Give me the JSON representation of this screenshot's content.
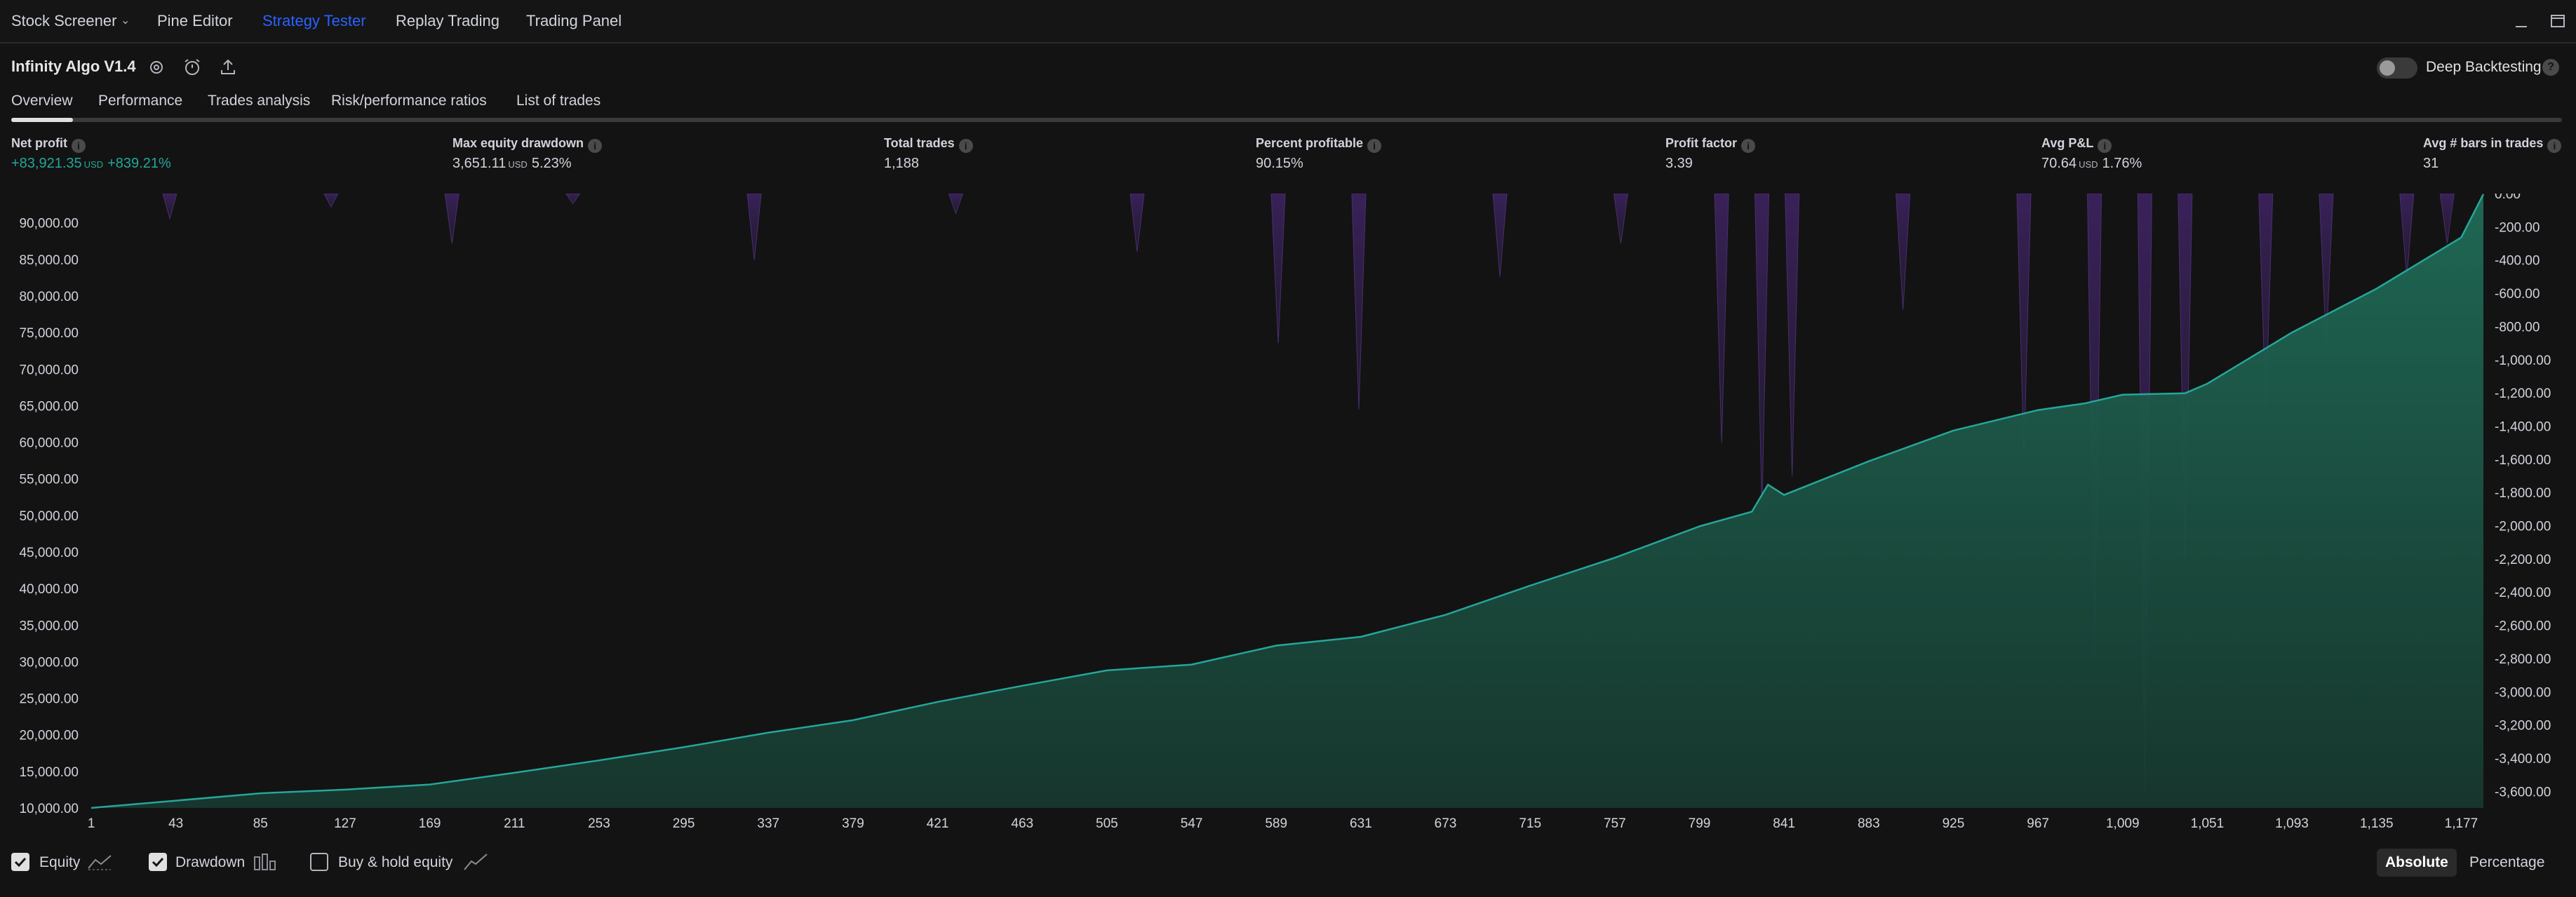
{
  "topnav": {
    "tabs": [
      {
        "label": "Stock Screener",
        "active": false
      },
      {
        "label": "Pine Editor",
        "active": false
      },
      {
        "label": "Strategy Tester",
        "active": true
      },
      {
        "label": "Replay Trading",
        "active": false
      },
      {
        "label": "Trading Panel",
        "active": false
      }
    ]
  },
  "strategy": {
    "name": "Infinity Algo V1.4",
    "deep_backtesting_label": "Deep Backtesting",
    "deep_backtesting_on": false
  },
  "subtabs": [
    "Overview",
    "Performance",
    "Trades analysis",
    "Risk/performance ratios",
    "List of trades"
  ],
  "metrics": {
    "net_profit": {
      "label": "Net profit",
      "value": "+83,921.35",
      "unit": "USD",
      "pct": "+839.21%"
    },
    "max_drawdown": {
      "label": "Max equity drawdown",
      "value": "3,651.11",
      "unit": "USD",
      "pct": "5.23%"
    },
    "total_trades": {
      "label": "Total trades",
      "value": "1,188"
    },
    "percent_profitable": {
      "label": "Percent profitable",
      "value": "90.15%"
    },
    "profit_factor": {
      "label": "Profit factor",
      "value": "3.39"
    },
    "avg_pnl": {
      "label": "Avg P&L",
      "value": "70.64",
      "unit": "USD",
      "pct": "1.76%"
    },
    "avg_bars": {
      "label": "Avg # bars in trades",
      "value": "31"
    }
  },
  "chart_data": {
    "type": "area",
    "x_ticks": [
      "1",
      "43",
      "85",
      "127",
      "169",
      "211",
      "253",
      "295",
      "337",
      "379",
      "421",
      "463",
      "505",
      "547",
      "589",
      "631",
      "673",
      "715",
      "757",
      "799",
      "841",
      "883",
      "925",
      "967",
      "1,009",
      "1,051",
      "1,093",
      "1,135",
      "1,177"
    ],
    "left_axis_ticks": [
      "90,000.00",
      "85,000.00",
      "80,000.00",
      "75,000.00",
      "70,000.00",
      "65,000.00",
      "60,000.00",
      "55,000.00",
      "50,000.00",
      "45,000.00",
      "40,000.00",
      "35,000.00",
      "30,000.00",
      "25,000.00",
      "20,000.00",
      "15,000.00",
      "10,000.00"
    ],
    "right_axis_ticks": [
      "0.00",
      "-200.00",
      "-400.00",
      "-600.00",
      "-800.00",
      "-1,000.00",
      "-1,200.00",
      "-1,400.00",
      "-1,600.00",
      "-1,800.00",
      "-2,000.00",
      "-2,200.00",
      "-2,400.00",
      "-2,600.00",
      "-2,800.00",
      "-3,000.00",
      "-3,200.00",
      "-3,400.00",
      "-3,600.00"
    ],
    "ylim_equity": [
      10000,
      94000
    ],
    "ylim_drawdown": [
      -3700,
      0
    ],
    "series": [
      {
        "name": "Equity",
        "color": "#26a69a",
        "points": [
          [
            1,
            10000
          ],
          [
            43,
            11000
          ],
          [
            85,
            12000
          ],
          [
            127,
            12500
          ],
          [
            169,
            13200
          ],
          [
            211,
            14800
          ],
          [
            253,
            16500
          ],
          [
            295,
            18300
          ],
          [
            337,
            20300
          ],
          [
            379,
            22000
          ],
          [
            421,
            24500
          ],
          [
            463,
            26700
          ],
          [
            505,
            28800
          ],
          [
            547,
            29600
          ],
          [
            589,
            32200
          ],
          [
            631,
            33400
          ],
          [
            673,
            36400
          ],
          [
            715,
            40400
          ],
          [
            757,
            44200
          ],
          [
            799,
            48500
          ],
          [
            825,
            50500
          ],
          [
            833,
            54200
          ],
          [
            841,
            52800
          ],
          [
            883,
            57400
          ],
          [
            925,
            61600
          ],
          [
            967,
            64400
          ],
          [
            990,
            65300
          ],
          [
            1009,
            66500
          ],
          [
            1040,
            66700
          ],
          [
            1051,
            68000
          ],
          [
            1093,
            75000
          ],
          [
            1135,
            81000
          ],
          [
            1177,
            88000
          ],
          [
            1188,
            93920
          ]
        ]
      },
      {
        "name": "Drawdown",
        "color": "#7e57c2",
        "points": [
          [
            40,
            -150
          ],
          [
            120,
            -80
          ],
          [
            180,
            -300
          ],
          [
            240,
            -60
          ],
          [
            330,
            -400
          ],
          [
            430,
            -120
          ],
          [
            520,
            -350
          ],
          [
            590,
            -900
          ],
          [
            630,
            -1300
          ],
          [
            700,
            -500
          ],
          [
            760,
            -300
          ],
          [
            810,
            -1500
          ],
          [
            830,
            -1900
          ],
          [
            845,
            -1700
          ],
          [
            900,
            -700
          ],
          [
            960,
            -1600
          ],
          [
            995,
            -2800
          ],
          [
            1020,
            -3600
          ],
          [
            1040,
            -2200
          ],
          [
            1080,
            -1300
          ],
          [
            1110,
            -900
          ],
          [
            1150,
            -500
          ],
          [
            1170,
            -300
          ]
        ]
      }
    ]
  },
  "legend": {
    "equity": {
      "label": "Equity",
      "checked": true
    },
    "drawdown": {
      "label": "Drawdown",
      "checked": true
    },
    "buy_hold": {
      "label": "Buy & hold equity",
      "checked": false
    }
  },
  "view_modes": [
    {
      "label": "Absolute",
      "active": true
    },
    {
      "label": "Percentage",
      "active": false
    }
  ]
}
